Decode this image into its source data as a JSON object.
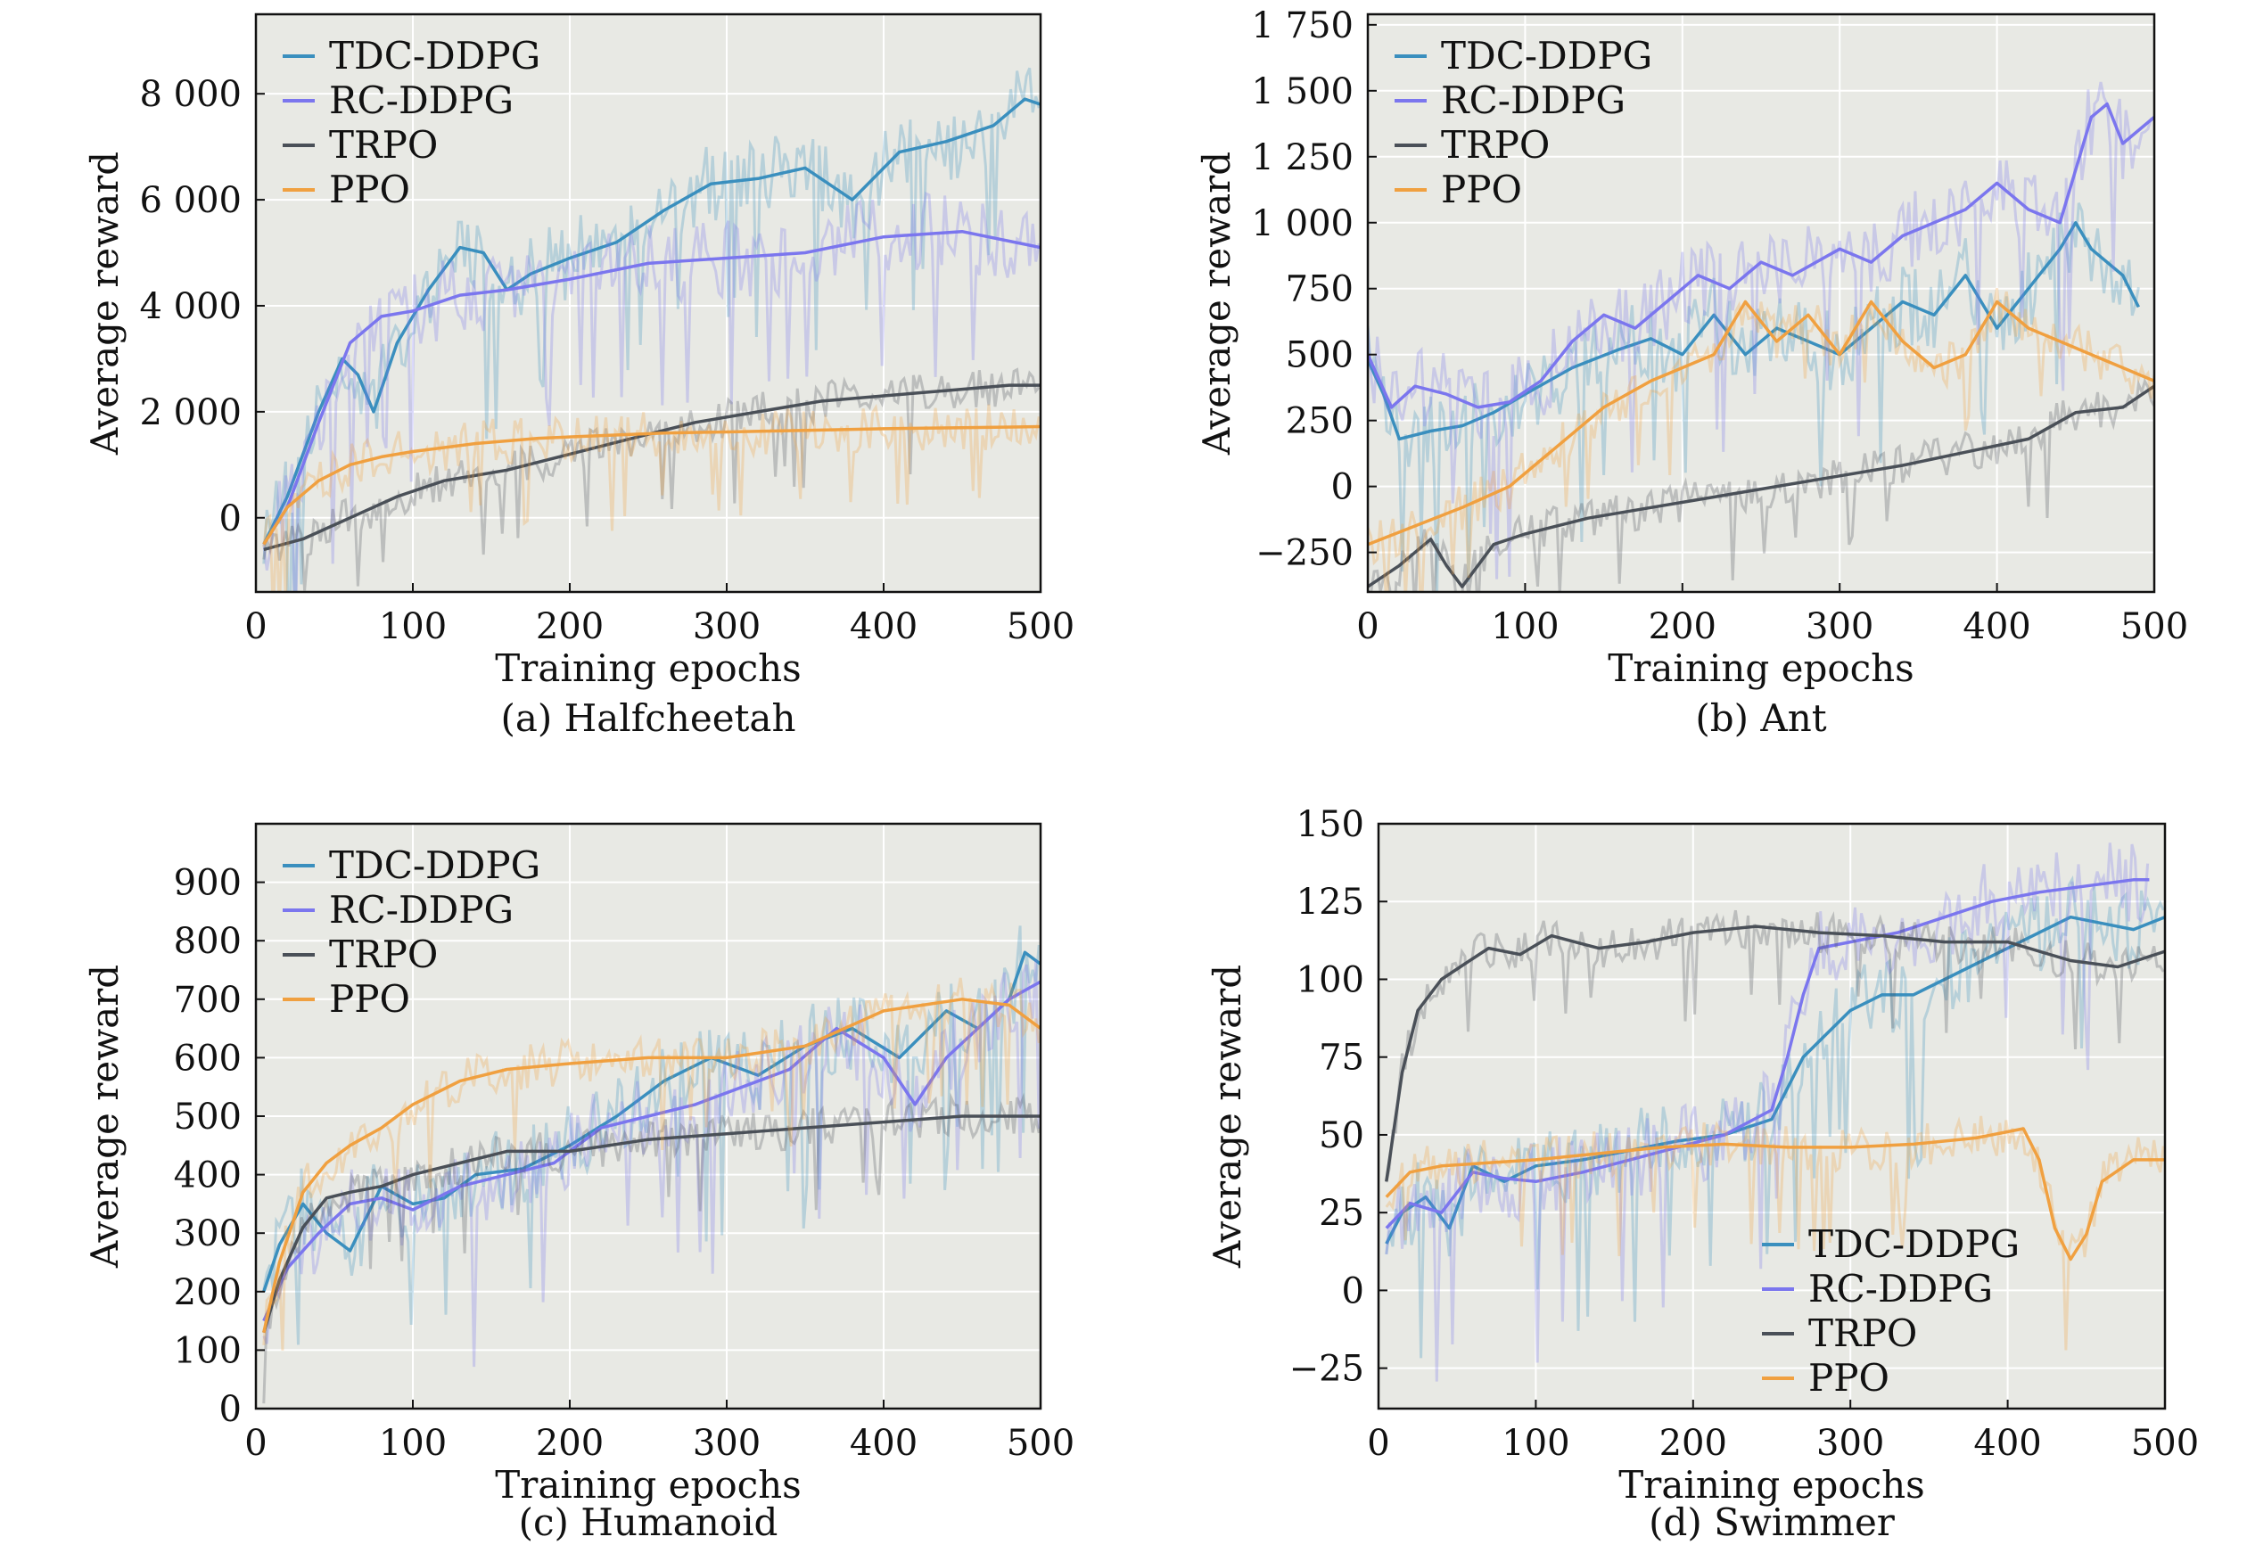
{
  "figure": {
    "series_colors": {
      "TDC-DDPG": "#3a8fbe",
      "RC-DDPG": "#7b76ee",
      "TRPO": "#4a5058",
      "PPO": "#f0a040"
    },
    "plot_background": "#e8e9e4"
  },
  "chart_data": [
    {
      "type": "line",
      "caption": "(a) Halfcheetah",
      "title": "",
      "xlabel": "Training epochs",
      "ylabel": "Average reward",
      "xlim": [
        0,
        500
      ],
      "ylim": [
        -1400,
        9500
      ],
      "xticks": [
        0,
        100,
        200,
        300,
        400,
        500
      ],
      "xtick_labels": [
        "0",
        "100",
        "200",
        "300",
        "400",
        "500"
      ],
      "yticks": [
        0,
        2000,
        4000,
        6000,
        8000
      ],
      "ytick_labels": [
        "0",
        "2 000",
        "4 000",
        "6 000",
        "8 000"
      ],
      "legend_position": "top-left",
      "grid": true,
      "series": [
        {
          "name": "TDC-DDPG",
          "x": [
            5,
            20,
            40,
            55,
            65,
            75,
            90,
            110,
            130,
            145,
            160,
            175,
            200,
            230,
            260,
            290,
            320,
            350,
            380,
            410,
            440,
            470,
            490,
            500
          ],
          "y": [
            -500,
            400,
            2000,
            3000,
            2700,
            2000,
            3300,
            4300,
            5100,
            5000,
            4300,
            4600,
            4900,
            5200,
            5800,
            6300,
            6400,
            6600,
            6000,
            6900,
            7100,
            7400,
            7900,
            7800
          ]
        },
        {
          "name": "RC-DDPG",
          "x": [
            5,
            20,
            40,
            60,
            80,
            100,
            130,
            160,
            200,
            250,
            300,
            350,
            400,
            450,
            500
          ],
          "y": [
            -500,
            200,
            1800,
            3300,
            3800,
            3900,
            4200,
            4300,
            4500,
            4800,
            4900,
            5000,
            5300,
            5400,
            5100
          ]
        },
        {
          "name": "TRPO",
          "x": [
            5,
            30,
            60,
            90,
            120,
            160,
            200,
            240,
            280,
            320,
            360,
            400,
            440,
            480,
            500
          ],
          "y": [
            -600,
            -400,
            0,
            400,
            700,
            900,
            1200,
            1500,
            1800,
            2000,
            2200,
            2300,
            2400,
            2500,
            2500
          ]
        },
        {
          "name": "PPO",
          "x": [
            5,
            20,
            40,
            60,
            80,
            100,
            140,
            180,
            220,
            260,
            300,
            350,
            400,
            450,
            500
          ],
          "y": [
            -500,
            200,
            700,
            1000,
            1150,
            1250,
            1400,
            1500,
            1550,
            1600,
            1620,
            1650,
            1680,
            1700,
            1720
          ]
        }
      ]
    },
    {
      "type": "line",
      "caption": "(b) Ant",
      "title": "",
      "xlabel": "Training epochs",
      "ylabel": "Average reward",
      "xlim": [
        0,
        500
      ],
      "ylim": [
        -400,
        1790
      ],
      "xticks": [
        0,
        100,
        200,
        300,
        400,
        500
      ],
      "xtick_labels": [
        "0",
        "100",
        "200",
        "300",
        "400",
        "500"
      ],
      "yticks": [
        -250,
        0,
        250,
        500,
        750,
        1000,
        1250,
        1500,
        1750
      ],
      "ytick_labels": [
        "−250",
        "0",
        "250",
        "500",
        "750",
        "1 000",
        "1 250",
        "1 500",
        "1 750"
      ],
      "legend_position": "top-left",
      "grid": true,
      "series": [
        {
          "name": "TDC-DDPG",
          "x": [
            0,
            10,
            20,
            40,
            60,
            80,
            100,
            130,
            160,
            180,
            200,
            220,
            240,
            260,
            280,
            300,
            320,
            340,
            360,
            380,
            400,
            420,
            440,
            450,
            460,
            480,
            490
          ],
          "y": [
            480,
            350,
            180,
            210,
            230,
            280,
            350,
            450,
            520,
            560,
            500,
            650,
            500,
            600,
            550,
            500,
            600,
            700,
            650,
            800,
            600,
            750,
            900,
            1000,
            900,
            800,
            680
          ]
        },
        {
          "name": "RC-DDPG",
          "x": [
            0,
            15,
            30,
            50,
            70,
            90,
            110,
            130,
            150,
            170,
            190,
            210,
            230,
            250,
            270,
            300,
            320,
            340,
            360,
            380,
            400,
            420,
            440,
            450,
            460,
            470,
            480,
            500
          ],
          "y": [
            500,
            300,
            380,
            350,
            300,
            320,
            400,
            550,
            650,
            600,
            700,
            800,
            750,
            850,
            800,
            900,
            850,
            950,
            1000,
            1050,
            1150,
            1050,
            1000,
            1200,
            1400,
            1450,
            1300,
            1400
          ]
        },
        {
          "name": "TRPO",
          "x": [
            0,
            20,
            40,
            50,
            60,
            80,
            100,
            140,
            180,
            220,
            260,
            300,
            340,
            380,
            420,
            450,
            480,
            500
          ],
          "y": [
            -380,
            -300,
            -200,
            -300,
            -380,
            -220,
            -180,
            -120,
            -80,
            -40,
            0,
            40,
            80,
            130,
            180,
            280,
            300,
            380
          ]
        },
        {
          "name": "PPO",
          "x": [
            0,
            30,
            60,
            90,
            120,
            150,
            180,
            200,
            220,
            240,
            260,
            280,
            300,
            320,
            340,
            360,
            380,
            400,
            420,
            440,
            460,
            480,
            500
          ],
          "y": [
            -220,
            -150,
            -80,
            0,
            150,
            300,
            400,
            450,
            500,
            700,
            550,
            650,
            500,
            700,
            550,
            450,
            500,
            700,
            600,
            550,
            500,
            450,
            400
          ]
        }
      ]
    },
    {
      "type": "line",
      "caption": "(c) Humanoid",
      "title": "",
      "xlabel": "Training epochs",
      "ylabel": "Average reward",
      "xlim": [
        0,
        500
      ],
      "ylim": [
        0,
        1000
      ],
      "xticks": [
        0,
        100,
        200,
        300,
        400,
        500
      ],
      "xtick_labels": [
        "0",
        "100",
        "200",
        "300",
        "400",
        "500"
      ],
      "yticks": [
        0,
        100,
        200,
        300,
        400,
        500,
        600,
        700,
        800,
        900
      ],
      "ytick_labels": [
        "0",
        "100",
        "200",
        "300",
        "400",
        "500",
        "600",
        "700",
        "800",
        "900"
      ],
      "legend_position": "top-left",
      "grid": true,
      "series": [
        {
          "name": "TDC-DDPG",
          "x": [
            5,
            15,
            30,
            45,
            60,
            80,
            100,
            120,
            140,
            170,
            200,
            230,
            260,
            290,
            320,
            350,
            380,
            410,
            440,
            460,
            480,
            490,
            500
          ],
          "y": [
            200,
            280,
            350,
            300,
            270,
            380,
            350,
            360,
            400,
            410,
            450,
            500,
            560,
            600,
            570,
            620,
            650,
            600,
            680,
            650,
            700,
            780,
            760
          ]
        },
        {
          "name": "RC-DDPG",
          "x": [
            5,
            20,
            40,
            60,
            80,
            100,
            130,
            160,
            190,
            220,
            250,
            280,
            310,
            340,
            370,
            400,
            420,
            440,
            460,
            480,
            500
          ],
          "y": [
            150,
            240,
            300,
            350,
            360,
            340,
            380,
            400,
            420,
            480,
            500,
            520,
            550,
            580,
            650,
            600,
            520,
            600,
            650,
            700,
            730
          ]
        },
        {
          "name": "TRPO",
          "x": [
            5,
            15,
            30,
            45,
            60,
            80,
            100,
            130,
            160,
            200,
            250,
            300,
            350,
            400,
            450,
            500
          ],
          "y": [
            130,
            220,
            310,
            360,
            370,
            380,
            400,
            420,
            440,
            440,
            460,
            470,
            480,
            490,
            500,
            500
          ]
        },
        {
          "name": "PPO",
          "x": [
            5,
            15,
            30,
            45,
            60,
            80,
            100,
            130,
            160,
            200,
            250,
            300,
            350,
            400,
            450,
            480,
            500
          ],
          "y": [
            130,
            250,
            370,
            420,
            450,
            480,
            520,
            560,
            580,
            590,
            600,
            600,
            620,
            680,
            700,
            690,
            650
          ]
        }
      ]
    },
    {
      "type": "line",
      "caption": "(d) Swimmer",
      "title": "",
      "xlabel": "Training epochs",
      "ylabel": "Average reward",
      "xlim": [
        0,
        500
      ],
      "ylim": [
        -38,
        150
      ],
      "xticks": [
        0,
        100,
        200,
        300,
        400,
        500
      ],
      "xtick_labels": [
        "0",
        "100",
        "200",
        "300",
        "400",
        "500"
      ],
      "yticks": [
        -25,
        0,
        25,
        50,
        75,
        100,
        125,
        150
      ],
      "ytick_labels": [
        "−25",
        "0",
        "25",
        "50",
        "75",
        "100",
        "125",
        "150"
      ],
      "legend_position": "bottom-right",
      "grid": true,
      "series": [
        {
          "name": "TDC-DDPG",
          "x": [
            5,
            15,
            30,
            45,
            60,
            80,
            100,
            130,
            160,
            190,
            220,
            250,
            270,
            280,
            300,
            320,
            340,
            360,
            380,
            400,
            420,
            440,
            460,
            480,
            500
          ],
          "y": [
            15,
            25,
            30,
            20,
            40,
            35,
            40,
            42,
            45,
            48,
            50,
            55,
            75,
            80,
            90,
            95,
            95,
            100,
            105,
            110,
            115,
            120,
            118,
            116,
            120
          ]
        },
        {
          "name": "RC-DDPG",
          "x": [
            5,
            20,
            40,
            60,
            80,
            100,
            130,
            160,
            190,
            220,
            250,
            260,
            270,
            280,
            300,
            330,
            360,
            390,
            420,
            450,
            480,
            490
          ],
          "y": [
            20,
            28,
            25,
            38,
            36,
            35,
            38,
            42,
            46,
            50,
            58,
            75,
            95,
            110,
            112,
            115,
            120,
            125,
            128,
            130,
            132,
            132
          ]
        },
        {
          "name": "TRPO",
          "x": [
            5,
            15,
            25,
            40,
            55,
            70,
            90,
            110,
            140,
            170,
            200,
            240,
            280,
            320,
            360,
            400,
            440,
            470,
            500
          ],
          "y": [
            35,
            70,
            90,
            100,
            105,
            110,
            108,
            114,
            110,
            112,
            115,
            117,
            115,
            114,
            112,
            112,
            106,
            104,
            109
          ]
        },
        {
          "name": "PPO",
          "x": [
            5,
            20,
            40,
            70,
            100,
            140,
            180,
            220,
            260,
            300,
            340,
            380,
            410,
            420,
            430,
            440,
            450,
            460,
            480,
            500
          ],
          "y": [
            30,
            38,
            40,
            41,
            42,
            44,
            46,
            47,
            46,
            46,
            47,
            49,
            52,
            42,
            20,
            10,
            18,
            35,
            42,
            42
          ]
        }
      ]
    }
  ]
}
